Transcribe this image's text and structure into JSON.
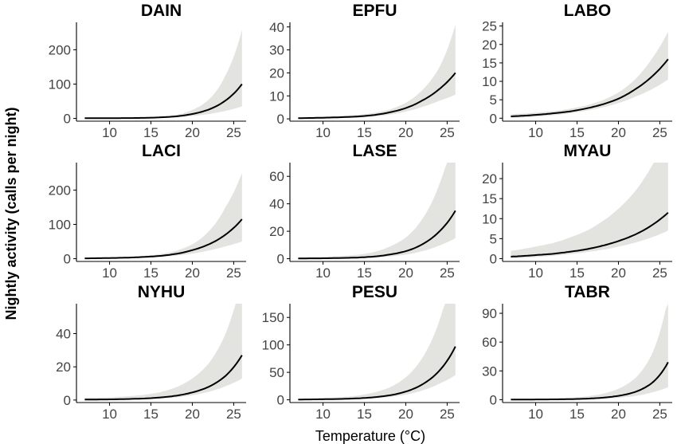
{
  "figure": {
    "ylabel": "Nightly activity (calls per night)",
    "xlabel": "Temperature (°C)"
  },
  "chart_data": [
    {
      "type": "line",
      "title": "DAIN",
      "xlim": [
        6,
        26.5
      ],
      "ylim": [
        -8,
        280
      ],
      "xticks": [
        10,
        15,
        20,
        25
      ],
      "yticks": [
        0,
        100,
        200
      ],
      "series": [
        {
          "x": [
            7,
            10,
            12,
            14,
            16,
            18,
            20,
            22,
            24,
            26
          ],
          "y": [
            0.5,
            0.8,
            1,
            1.5,
            3,
            6,
            13,
            26,
            52,
            100
          ]
        }
      ],
      "band": {
        "x": [
          7,
          10,
          12,
          14,
          16,
          18,
          20,
          22,
          24,
          26
        ],
        "lower": [
          0,
          0,
          0.1,
          0.5,
          1.5,
          3,
          7,
          13,
          22,
          35
        ],
        "upper": [
          1,
          1.5,
          2,
          3,
          5,
          10,
          25,
          55,
          125,
          258
        ]
      }
    },
    {
      "type": "line",
      "title": "EPFU",
      "xlim": [
        6,
        26.5
      ],
      "ylim": [
        -1,
        42
      ],
      "xticks": [
        10,
        15,
        20,
        25
      ],
      "yticks": [
        0,
        10,
        20,
        30,
        40
      ],
      "series": [
        {
          "x": [
            7,
            10,
            12,
            14,
            16,
            18,
            20,
            22,
            24,
            26
          ],
          "y": [
            0.3,
            0.5,
            0.7,
            1,
            1.6,
            2.8,
            4.7,
            8,
            12.8,
            20
          ]
        }
      ],
      "band": {
        "x": [
          7,
          10,
          12,
          14,
          16,
          18,
          20,
          22,
          24,
          26
        ],
        "lower": [
          0,
          0.1,
          0.3,
          0.5,
          1,
          1.8,
          3.2,
          5.2,
          7.8,
          10.5
        ],
        "upper": [
          0.6,
          0.9,
          1.2,
          1.7,
          2.5,
          4,
          7,
          12.5,
          22,
          41
        ]
      }
    },
    {
      "type": "line",
      "title": "LABO",
      "xlim": [
        6,
        26.5
      ],
      "ylim": [
        -0.8,
        26
      ],
      "xticks": [
        10,
        15,
        20,
        25
      ],
      "yticks": [
        0,
        5,
        10,
        15,
        20,
        25
      ],
      "series": [
        {
          "x": [
            7,
            10,
            12,
            14,
            16,
            18,
            20,
            22,
            24,
            26
          ],
          "y": [
            0.5,
            0.9,
            1.3,
            1.8,
            2.6,
            3.7,
            5.3,
            7.8,
            11.2,
            16
          ]
        }
      ],
      "band": {
        "x": [
          7,
          10,
          12,
          14,
          16,
          18,
          20,
          22,
          24,
          26
        ],
        "lower": [
          0.1,
          0.4,
          0.8,
          1.3,
          2,
          2.9,
          4.1,
          5.8,
          7.8,
          10.5
        ],
        "upper": [
          1.1,
          1.5,
          1.9,
          2.5,
          3.4,
          4.8,
          7,
          10.5,
          16,
          23.5
        ]
      }
    },
    {
      "type": "line",
      "title": "LACI",
      "xlim": [
        6,
        26.5
      ],
      "ylim": [
        -8,
        280
      ],
      "xticks": [
        10,
        15,
        20,
        25
      ],
      "yticks": [
        0,
        100,
        200
      ],
      "series": [
        {
          "x": [
            7,
            10,
            12,
            14,
            16,
            18,
            20,
            22,
            24,
            26
          ],
          "y": [
            1,
            2,
            3,
            5,
            8,
            14,
            25,
            42,
            70,
            115
          ]
        }
      ],
      "band": {
        "x": [
          7,
          10,
          12,
          14,
          16,
          18,
          20,
          22,
          24,
          26
        ],
        "lower": [
          0,
          0.5,
          1.5,
          3,
          5,
          9,
          15,
          24,
          36,
          50
        ],
        "upper": [
          2,
          3,
          5,
          8,
          13,
          23,
          42,
          80,
          150,
          250
        ]
      }
    },
    {
      "type": "line",
      "title": "LASE",
      "xlim": [
        6,
        26.5
      ],
      "ylim": [
        -2,
        70
      ],
      "xticks": [
        10,
        15,
        20,
        25
      ],
      "yticks": [
        0,
        20,
        40,
        60
      ],
      "series": [
        {
          "x": [
            7,
            10,
            12,
            14,
            16,
            18,
            20,
            22,
            24,
            26
          ],
          "y": [
            0.2,
            0.3,
            0.5,
            0.8,
            1.5,
            3,
            5.5,
            10.5,
            19.5,
            35
          ]
        }
      ],
      "band": {
        "x": [
          7,
          10,
          12,
          14,
          16,
          18,
          20,
          22,
          24,
          26
        ],
        "lower": [
          0,
          0,
          0.2,
          0.4,
          0.8,
          1.6,
          3,
          5.5,
          9.5,
          15
        ]
      }
    },
    {
      "type": "line",
      "title": "MYAU",
      "xlim": [
        6,
        26.5
      ],
      "ylim": [
        -0.7,
        24
      ],
      "xticks": [
        10,
        15,
        20,
        25
      ],
      "yticks": [
        0,
        5,
        10,
        15,
        20
      ],
      "series": [
        {
          "x": [
            7,
            10,
            12,
            14,
            16,
            18,
            20,
            22,
            24,
            26
          ],
          "y": [
            0.5,
            0.9,
            1.2,
            1.7,
            2.3,
            3.2,
            4.4,
            6,
            8.3,
            11.5
          ]
        }
      ],
      "band": {
        "x": [
          7,
          10,
          12,
          14,
          16,
          18,
          20,
          22,
          24,
          26
        ],
        "lower": [
          0.1,
          0.4,
          0.7,
          1.1,
          1.6,
          2.2,
          3,
          4,
          5.3,
          7
        ]
      }
    },
    {
      "type": "line",
      "title": "NYHU",
      "xlim": [
        6,
        26.5
      ],
      "ylim": [
        -1.5,
        58
      ],
      "xticks": [
        10,
        15,
        20,
        25
      ],
      "yticks": [
        0,
        20,
        40
      ],
      "series": [
        {
          "x": [
            7,
            10,
            12,
            14,
            16,
            18,
            20,
            22,
            24,
            26
          ],
          "y": [
            0.3,
            0.4,
            0.6,
            0.9,
            1.5,
            2.6,
            4.6,
            8,
            14.5,
            27
          ]
        }
      ],
      "band": {
        "x": [
          7,
          10,
          12,
          14,
          16,
          18,
          20,
          22,
          24,
          26
        ],
        "lower": [
          0,
          0.1,
          0.3,
          0.5,
          0.9,
          1.6,
          2.9,
          5,
          8.3,
          13
        ]
      }
    },
    {
      "type": "line",
      "title": "PESU",
      "xlim": [
        6,
        26.5
      ],
      "ylim": [
        -5,
        175
      ],
      "xticks": [
        10,
        15,
        20,
        25
      ],
      "yticks": [
        0,
        50,
        100,
        150
      ],
      "series": [
        {
          "x": [
            7,
            10,
            12,
            14,
            16,
            18,
            20,
            22,
            24,
            26
          ],
          "y": [
            0.5,
            1,
            1.5,
            2.5,
            4.5,
            8,
            15,
            28,
            52,
            97
          ]
        }
      ],
      "band": {
        "x": [
          7,
          10,
          12,
          14,
          16,
          18,
          20,
          22,
          24,
          26
        ],
        "lower": [
          0,
          0.2,
          0.7,
          1.4,
          2.8,
          5,
          9.5,
          17,
          29,
          45
        ]
      }
    },
    {
      "type": "line",
      "title": "TABR",
      "xlim": [
        6,
        26.5
      ],
      "ylim": [
        -3,
        100
      ],
      "xticks": [
        10,
        15,
        20,
        25
      ],
      "yticks": [
        0,
        30,
        60,
        90
      ],
      "series": [
        {
          "x": [
            7,
            10,
            12,
            14,
            16,
            18,
            20,
            22,
            24,
            26
          ],
          "y": [
            0.1,
            0.2,
            0.3,
            0.5,
            1,
            2,
            4,
            8,
            17,
            39
          ]
        }
      ],
      "band": {
        "x": [
          7,
          10,
          12,
          14,
          16,
          18,
          20,
          22,
          24,
          26
        ],
        "lower": [
          0,
          0,
          0.1,
          0.2,
          0.5,
          1,
          2,
          3.8,
          7.5,
          13
        ]
      }
    }
  ]
}
